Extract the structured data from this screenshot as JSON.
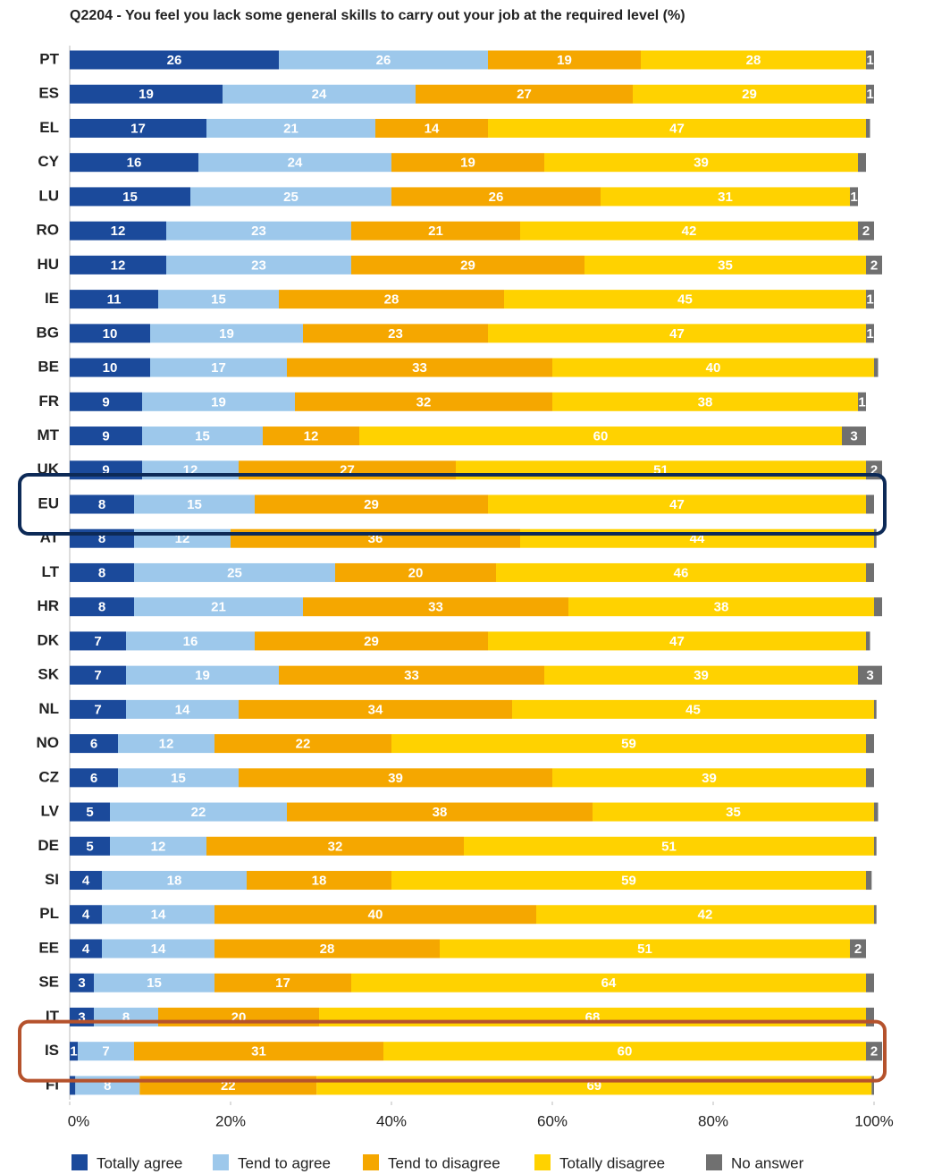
{
  "chart_data": {
    "type": "stacked-bar-horizontal",
    "title": "Q2204 - You feel you lack some general skills to carry out your job at the required level (%)",
    "categories": [
      "PT",
      "ES",
      "EL",
      "CY",
      "LU",
      "RO",
      "HU",
      "IE",
      "BG",
      "BE",
      "FR",
      "MT",
      "UK",
      "EU",
      "AT",
      "LT",
      "HR",
      "DK",
      "SK",
      "NL",
      "NO",
      "CZ",
      "LV",
      "DE",
      "SI",
      "PL",
      "EE",
      "SE",
      "IT",
      "IS",
      "FI"
    ],
    "xlim": [
      0,
      100
    ],
    "xticks": [
      {
        "value": 0,
        "label": "0%"
      },
      {
        "value": 20,
        "label": "20%"
      },
      {
        "value": 40,
        "label": "40%"
      },
      {
        "value": 60,
        "label": "60%"
      },
      {
        "value": 80,
        "label": "80%"
      },
      {
        "value": 100,
        "label": "100%"
      }
    ],
    "series": [
      {
        "name": "Totally agree",
        "color": "#1b4a9b",
        "values": [
          26,
          19,
          17,
          16,
          15,
          12,
          12,
          11,
          10,
          10,
          9,
          9,
          9,
          8,
          8,
          8,
          8,
          7,
          7,
          7,
          6,
          6,
          5,
          5,
          4,
          4,
          4,
          3,
          3,
          1,
          0.7
        ],
        "value_labels": [
          "26",
          "19",
          "17",
          "16",
          "15",
          "12",
          "12",
          "11",
          "10",
          "10",
          "9",
          "9",
          "9",
          "8",
          "8",
          "8",
          "8",
          "7",
          "7",
          "7",
          "6",
          "6",
          "5",
          "5",
          "4",
          "4",
          "4",
          "3",
          "3",
          "1",
          null
        ]
      },
      {
        "name": "Tend to agree",
        "color": "#9dc8eb",
        "values": [
          26,
          24,
          21,
          24,
          25,
          23,
          23,
          15,
          19,
          17,
          19,
          15,
          12,
          15,
          12,
          25,
          21,
          16,
          19,
          14,
          12,
          15,
          22,
          12,
          18,
          14,
          14,
          15,
          8,
          7,
          8
        ],
        "value_labels": [
          "26",
          "24",
          "21",
          "24",
          "25",
          "23",
          "23",
          "15",
          "19",
          "17",
          "19",
          "15",
          "12",
          "15",
          "12",
          "25",
          "21",
          "16",
          "19",
          "14",
          "12",
          "15",
          "22",
          "12",
          "18",
          "14",
          "14",
          "15",
          "8",
          "7",
          "8"
        ]
      },
      {
        "name": "Tend to disagree",
        "color": "#f5a700",
        "values": [
          19,
          27,
          14,
          19,
          26,
          21,
          29,
          28,
          23,
          33,
          32,
          12,
          27,
          29,
          36,
          20,
          33,
          29,
          33,
          34,
          22,
          39,
          38,
          32,
          18,
          40,
          28,
          17,
          20,
          31,
          22
        ],
        "value_labels": [
          "19",
          "27",
          "14",
          "19",
          "26",
          "21",
          "29",
          "28",
          "23",
          "33",
          "32",
          "12",
          "27",
          "29",
          "36",
          "20",
          "33",
          "29",
          "33",
          "34",
          "22",
          "39",
          "38",
          "32",
          "18",
          "40",
          "28",
          "17",
          "20",
          "31",
          "22"
        ]
      },
      {
        "name": "Totally disagree",
        "color": "#ffd200",
        "values": [
          28,
          29,
          47,
          39,
          31,
          42,
          35,
          45,
          47,
          40,
          38,
          60,
          51,
          47,
          44,
          46,
          38,
          47,
          39,
          45,
          59,
          39,
          35,
          51,
          59,
          42,
          51,
          64,
          68,
          60,
          69
        ],
        "value_labels": [
          "28",
          "29",
          "47",
          "39",
          "31",
          "42",
          "35",
          "45",
          "47",
          "40",
          "38",
          "60",
          "51",
          "47",
          "44",
          "46",
          "38",
          "47",
          "39",
          "45",
          "59",
          "39",
          "35",
          "51",
          "59",
          "42",
          "51",
          "64",
          "68",
          "60",
          "69"
        ]
      },
      {
        "name": "No answer",
        "color": "#707070",
        "values": [
          1,
          1,
          0.5,
          1,
          1,
          2,
          2,
          1,
          1,
          0.5,
          1,
          3,
          2,
          1,
          0.3,
          1,
          1,
          0.5,
          3,
          0.3,
          1,
          1,
          0.5,
          0.3,
          0.7,
          0.3,
          2,
          1,
          1,
          2,
          0.3
        ],
        "value_labels": [
          "1",
          "1",
          null,
          null,
          "1",
          "2",
          "2",
          "1",
          "1",
          null,
          "1",
          "3",
          "2",
          null,
          null,
          null,
          null,
          null,
          "3",
          null,
          null,
          null,
          null,
          null,
          null,
          null,
          "2",
          null,
          null,
          "2",
          null
        ]
      }
    ]
  }
}
